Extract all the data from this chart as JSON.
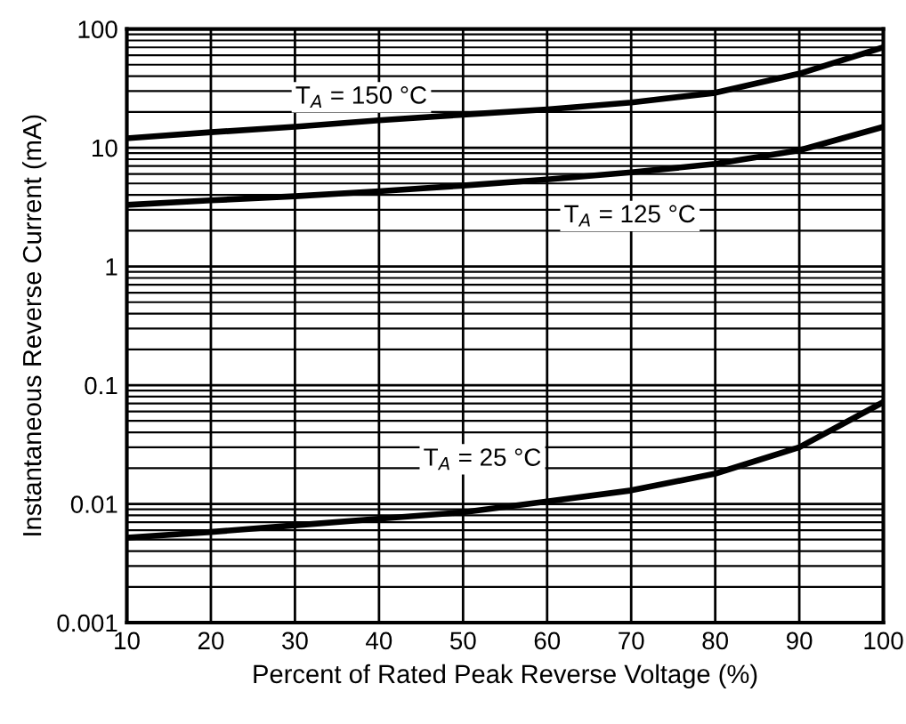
{
  "chart_data": {
    "type": "line",
    "xlabel": "Percent of Rated Peak Reverse Voltage (%)",
    "ylabel": "Instantaneous Reverse Current (mA)",
    "x": [
      10,
      20,
      30,
      40,
      50,
      60,
      70,
      80,
      90,
      100
    ],
    "series": [
      {
        "color": "#000000",
        "values": [
          12,
          13.5,
          15,
          17,
          19,
          21,
          24,
          29,
          42,
          70
        ]
      },
      {
        "color": "#000000",
        "values": [
          3.3,
          3.6,
          3.9,
          4.3,
          4.8,
          5.4,
          6.2,
          7.3,
          9.5,
          15
        ]
      },
      {
        "color": "#000000",
        "values": [
          0.0052,
          0.0058,
          0.0066,
          0.0075,
          0.0085,
          0.0105,
          0.013,
          0.018,
          0.03,
          0.072
        ]
      }
    ],
    "annotations": [
      "T$_{A}$ = 150 °C",
      "T$_{A}$ = 125 °C",
      "T$_{A}$ = 25 °C"
    ],
    "log": "y",
    "grid": true,
    "marker": "none",
    "line_style": "solid",
    "xlim": [
      10,
      100
    ],
    "xticks": [
      10,
      20,
      30,
      40,
      50,
      60,
      70,
      80,
      90,
      100
    ],
    "ylim": [
      0.001,
      100
    ],
    "yticks": [
      0.001,
      0.01,
      0.1,
      1,
      10,
      100
    ]
  }
}
